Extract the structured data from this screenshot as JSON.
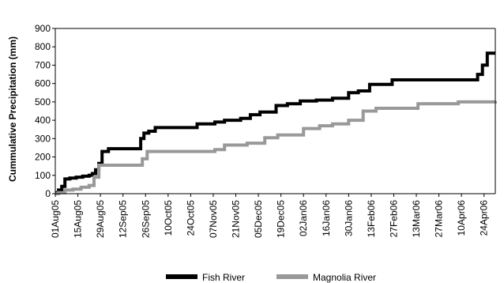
{
  "chart_data": {
    "type": "line",
    "title": "",
    "xlabel": "",
    "ylabel": "Cummulative Precipitation (mm)",
    "ylim": [
      0,
      900
    ],
    "yticks": [
      0,
      100,
      200,
      300,
      400,
      500,
      600,
      700,
      800,
      900
    ],
    "xlim": [
      "2005-08-01",
      "2006-05-01"
    ],
    "xtick_labels": [
      "01Aug05",
      "15Aug05",
      "29Aug05",
      "12Sep05",
      "26Sep05",
      "10Oct05",
      "24Oct05",
      "07Nov05",
      "21Nov05",
      "05Dec05",
      "19Dec05",
      "02Jan06",
      "16Jan06",
      "30Jan06",
      "13Feb06",
      "27Feb06",
      "13Mar06",
      "27Mar06",
      "10Apr06",
      "24Apr06"
    ],
    "xtick_dates": [
      "2005-08-01",
      "2005-08-15",
      "2005-08-29",
      "2005-09-12",
      "2005-09-26",
      "2005-10-10",
      "2005-10-24",
      "2005-11-07",
      "2005-11-21",
      "2005-12-05",
      "2005-12-19",
      "2006-01-02",
      "2006-01-16",
      "2006-01-30",
      "2006-02-13",
      "2006-02-27",
      "2006-03-13",
      "2006-03-27",
      "2006-04-10",
      "2006-04-24"
    ],
    "grid": false,
    "legend_position": "bottom-center",
    "series": [
      {
        "name": "Fish River",
        "color": "#000000",
        "x": [
          "2005-08-01",
          "2005-08-03",
          "2005-08-05",
          "2005-08-07",
          "2005-08-10",
          "2005-08-14",
          "2005-08-18",
          "2005-08-22",
          "2005-08-24",
          "2005-08-26",
          "2005-08-28",
          "2005-08-30",
          "2005-09-03",
          "2005-09-15",
          "2005-09-23",
          "2005-09-25",
          "2005-09-28",
          "2005-10-02",
          "2005-10-28",
          "2005-11-08",
          "2005-11-14",
          "2005-11-24",
          "2005-11-30",
          "2005-12-06",
          "2005-12-16",
          "2005-12-23",
          "2005-12-31",
          "2006-01-10",
          "2006-01-20",
          "2006-01-30",
          "2006-02-05",
          "2006-02-12",
          "2006-02-26",
          "2006-04-20",
          "2006-04-23",
          "2006-04-26",
          "2006-05-01"
        ],
        "y": [
          5,
          20,
          40,
          80,
          85,
          90,
          95,
          100,
          110,
          130,
          165,
          230,
          245,
          245,
          300,
          330,
          340,
          360,
          380,
          390,
          400,
          410,
          430,
          445,
          480,
          490,
          505,
          510,
          520,
          550,
          560,
          595,
          620,
          650,
          700,
          765,
          765
        ]
      },
      {
        "name": "Magnolia River",
        "color": "#999999",
        "x": [
          "2005-08-01",
          "2005-08-03",
          "2005-08-07",
          "2005-08-12",
          "2005-08-17",
          "2005-08-22",
          "2005-08-25",
          "2005-08-28",
          "2005-09-21",
          "2005-09-24",
          "2005-09-27",
          "2005-11-08",
          "2005-11-14",
          "2005-11-28",
          "2005-12-09",
          "2005-12-17",
          "2006-01-02",
          "2006-01-12",
          "2006-01-20",
          "2006-01-30",
          "2006-02-08",
          "2006-02-16",
          "2006-03-14",
          "2006-04-08",
          "2006-05-01"
        ],
        "y": [
          0,
          5,
          20,
          25,
          35,
          45,
          90,
          155,
          155,
          190,
          230,
          240,
          265,
          275,
          305,
          320,
          355,
          370,
          380,
          400,
          450,
          465,
          490,
          500,
          505
        ]
      }
    ]
  }
}
